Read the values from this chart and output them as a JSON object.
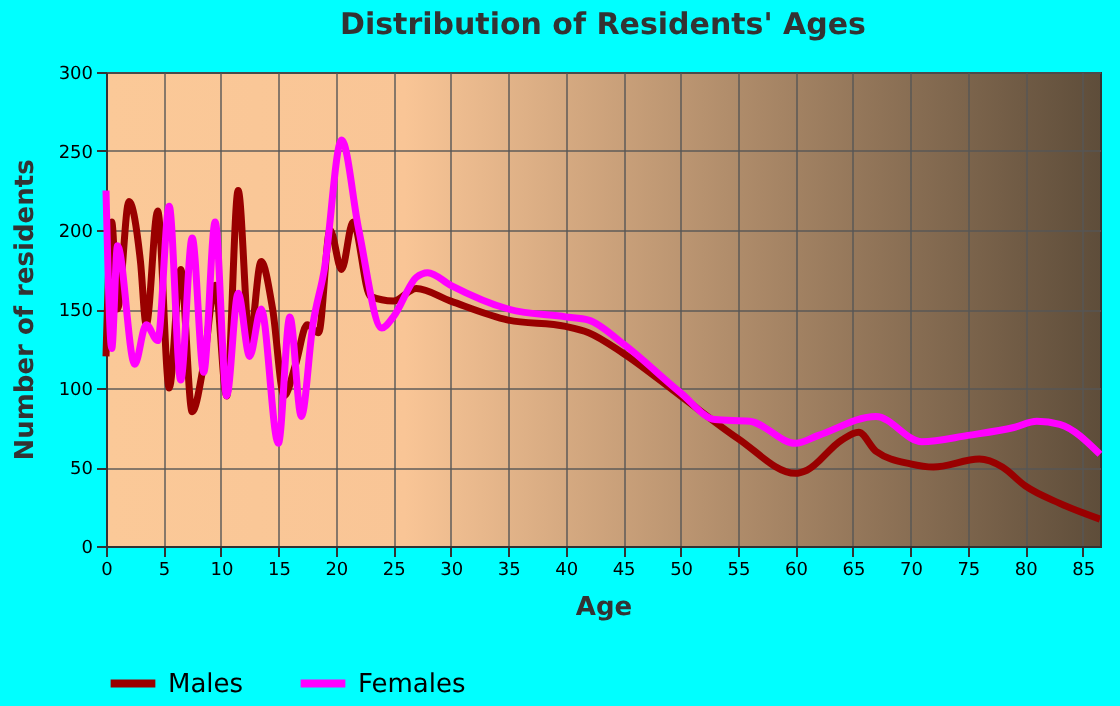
{
  "chart_data": {
    "type": "line",
    "title": "Distribution of Residents' Ages",
    "xlabel": "Age",
    "ylabel": "Number of residents",
    "xlim": [
      0,
      86.5
    ],
    "ylim": [
      0,
      300
    ],
    "xticks": [
      0,
      5,
      10,
      15,
      20,
      25,
      30,
      35,
      40,
      45,
      50,
      55,
      60,
      65,
      70,
      75,
      80,
      85
    ],
    "yticks": [
      0,
      50,
      100,
      150,
      200,
      250,
      300
    ],
    "grid": true,
    "legend": "bottom",
    "line_style": "solid",
    "marker": "none",
    "series": [
      {
        "name": "Males",
        "color": "#990000",
        "x": [
          0,
          0.5,
          1,
          2,
          3,
          3.5,
          4.5,
          5.5,
          6.5,
          7.5,
          8.5,
          9.5,
          10.5,
          11.5,
          12.5,
          13.5,
          14.5,
          15.5,
          16.5,
          17.5,
          18.5,
          19.5,
          20.5,
          21.5,
          23,
          25,
          27,
          30,
          35,
          40,
          42,
          45,
          50,
          55,
          60,
          61,
          64,
          65.5,
          67,
          70,
          72,
          76,
          78,
          80,
          83,
          86.5
        ],
        "values": [
          120,
          205,
          150,
          218,
          180,
          140,
          212,
          100,
          175,
          85,
          115,
          165,
          95,
          225,
          130,
          180,
          150,
          95,
          115,
          140,
          135,
          200,
          175,
          205,
          158,
          155,
          163,
          155,
          143,
          139,
          135,
          122,
          95,
          68,
          46,
          48,
          67,
          72,
          60,
          52,
          50,
          55,
          50,
          38,
          27,
          17
        ]
      },
      {
        "name": "Females",
        "color": "#ff00ff",
        "x": [
          0,
          0.5,
          1,
          2.5,
          3.5,
          4.5,
          5.5,
          6.5,
          7.5,
          8.5,
          9.5,
          10.5,
          11.5,
          12.5,
          13.5,
          15,
          16,
          17,
          18,
          19,
          20.5,
          22,
          24,
          25,
          27,
          28,
          30,
          35,
          40,
          42,
          45,
          50,
          53,
          56,
          60,
          62,
          67,
          71,
          75,
          79,
          81,
          83,
          86.5
        ],
        "values": [
          225,
          125,
          190,
          115,
          140,
          130,
          215,
          105,
          195,
          110,
          205,
          95,
          160,
          120,
          150,
          65,
          145,
          82,
          140,
          175,
          257,
          200,
          138,
          145,
          170,
          173,
          165,
          150,
          145,
          143,
          128,
          97,
          80,
          79,
          65,
          70,
          82,
          66,
          70,
          75,
          79,
          77,
          58
        ]
      }
    ]
  }
}
